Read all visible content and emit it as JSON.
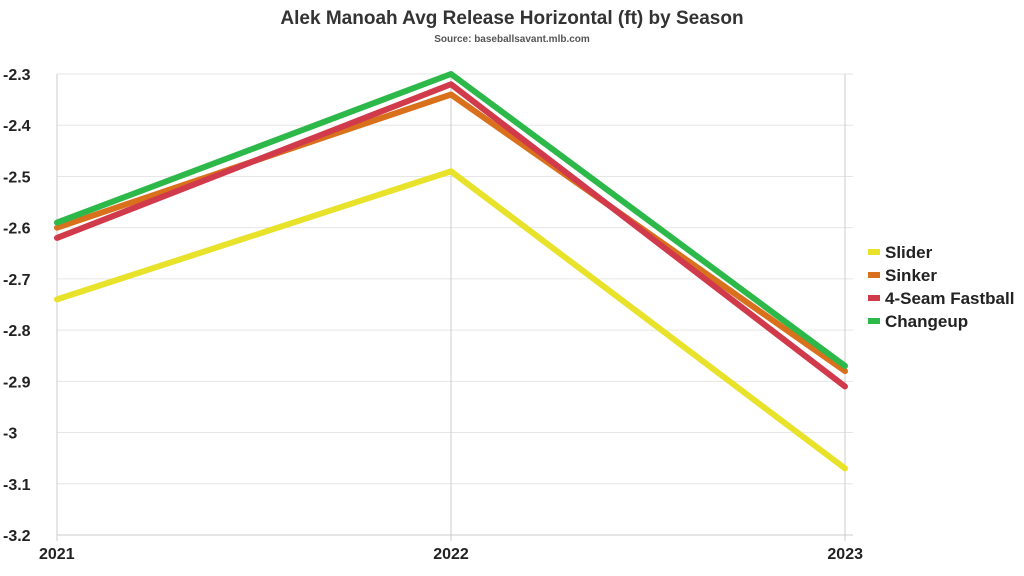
{
  "chart_data": {
    "type": "line",
    "title": "Alek Manoah Avg Release Horizontal (ft) by Season",
    "subtitle": "Source: baseballsavant.mlb.com",
    "xlabel": "",
    "ylabel": "",
    "x": [
      "2021",
      "2022",
      "2023"
    ],
    "ylim": [
      -3.2,
      -2.3
    ],
    "yticks": [
      -2.3,
      -2.4,
      -2.5,
      -2.6,
      -2.7,
      -2.8,
      -2.9,
      -3,
      -3.1,
      -3.2
    ],
    "ytick_labels": [
      "-2.3",
      "-2.4",
      "-2.5",
      "-2.6",
      "-2.7",
      "-2.8",
      "-2.9",
      "-3",
      "-3.1",
      "-3.2"
    ],
    "grid": true,
    "legend_position": "right",
    "series": [
      {
        "name": "Slider",
        "color": "#e8e22a",
        "values": [
          -2.74,
          -2.49,
          -3.07
        ]
      },
      {
        "name": "Sinker",
        "color": "#d9711c",
        "values": [
          -2.6,
          -2.34,
          -2.88
        ]
      },
      {
        "name": "4-Seam Fastball",
        "color": "#d13a4b",
        "values": [
          -2.62,
          -2.32,
          -2.91
        ]
      },
      {
        "name": "Changeup",
        "color": "#2db84a",
        "values": [
          -2.59,
          -2.3,
          -2.87
        ]
      }
    ]
  }
}
